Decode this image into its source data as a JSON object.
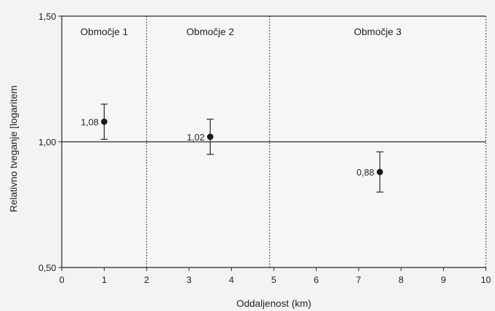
{
  "chart_data": {
    "type": "scatter",
    "title": "",
    "xlabel": "Oddaljenost (km)",
    "ylabel": "Relativno tveganje [logaritem",
    "xlim": [
      0,
      10
    ],
    "ylim": [
      0.5,
      1.5
    ],
    "x_ticks": [
      0,
      1,
      2,
      3,
      4,
      5,
      6,
      7,
      8,
      9,
      10
    ],
    "x_tick_labels": [
      "0",
      "1",
      "2",
      "3",
      "4",
      "5",
      "6",
      "7",
      "8",
      "9",
      "10"
    ],
    "y_ticks": [
      0.5,
      1.0,
      1.5
    ],
    "y_tick_labels": [
      "0,50",
      "1,00",
      "1,50"
    ],
    "reference_line_y": 1.0,
    "zone_boundaries_x": [
      2,
      4.9,
      10
    ],
    "zones": [
      {
        "label": "Območje 1",
        "x_center": 1
      },
      {
        "label": "Območje 2",
        "x_center": 3.5
      },
      {
        "label": "Območje 3",
        "x_center": 7.45
      }
    ],
    "points": [
      {
        "x": 1,
        "y": 1.08,
        "label": "1,08",
        "err_low": 1.01,
        "err_high": 1.15
      },
      {
        "x": 3.5,
        "y": 1.02,
        "label": "1,02",
        "err_low": 0.95,
        "err_high": 1.09
      },
      {
        "x": 7.5,
        "y": 0.88,
        "label": "0,88",
        "err_low": 0.8,
        "err_high": 0.96
      }
    ],
    "grid": false,
    "colors": {
      "marker": "#1a1a1a",
      "axis": "#222222",
      "background": "#f3f3f1"
    }
  }
}
